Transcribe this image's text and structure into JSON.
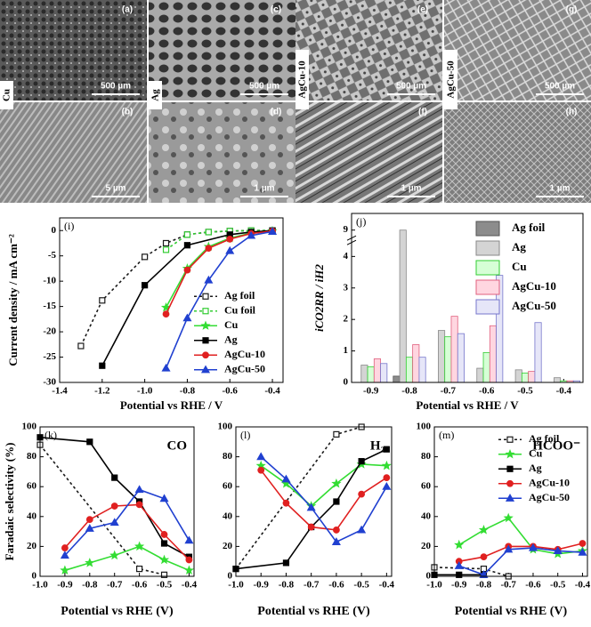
{
  "micrographs": {
    "panels": [
      {
        "label": "(a)",
        "scale_bar": "500 µm"
      },
      {
        "label": "(b)",
        "scale_bar": "5 µm"
      },
      {
        "label": "(c)",
        "scale_bar": "500 µm"
      },
      {
        "label": "(d)",
        "scale_bar": "1 µm"
      },
      {
        "label": "(e)",
        "scale_bar": "500 µm"
      },
      {
        "label": "(f)",
        "scale_bar": "1 µm"
      },
      {
        "label": "(g)",
        "scale_bar": "500 µm"
      },
      {
        "label": "(h)",
        "scale_bar": "1 µm"
      }
    ],
    "samples": [
      "Cu",
      "Ag",
      "AgCu-10",
      "AgCu-50"
    ]
  },
  "chart_data": [
    {
      "type": "line",
      "panel_label": "(i)",
      "x_label": "Potential vs RHE / V",
      "y_label": "Current density / mA cm⁻²",
      "xlim": [
        -1.4,
        -0.35
      ],
      "xticks": [
        -1.4,
        -1.2,
        {
          "value": -1,
          "label": "-1.0"
        },
        -0.8,
        -0.6,
        -0.4
      ],
      "ylim": [
        -30,
        2.5
      ],
      "yticks": [
        0,
        -5,
        -10,
        -15,
        -20,
        -25,
        -30
      ],
      "legend": "lower right",
      "series": [
        {
          "name": "Ag foil",
          "color": "#1a1a1a",
          "marker": "square",
          "open": true,
          "dash": true,
          "x": [
            -1.3,
            -1.2,
            -1,
            -0.9,
            -0.8,
            -0.7,
            -0.6,
            -0.5,
            -0.4
          ],
          "values": [
            -22.8,
            -13.8,
            -5.2,
            -2.5,
            -0.8,
            -0.3,
            -0.1,
            0,
            0
          ]
        },
        {
          "name": "Cu foil",
          "color": "#33cc33",
          "marker": "square",
          "open": true,
          "dash": true,
          "x": [
            -0.9,
            -0.8,
            -0.7,
            -0.6,
            -0.5,
            -0.4
          ],
          "values": [
            -3.8,
            -0.8,
            -0.3,
            -0.1,
            0,
            0
          ]
        },
        {
          "name": "Cu",
          "color": "#33dd33",
          "marker": "star",
          "x": [
            -0.9,
            -0.8,
            -0.7,
            -0.6,
            -0.5,
            -0.4
          ],
          "values": [
            -15.2,
            -7.5,
            -3.2,
            -1.5,
            -0.5,
            -0.1
          ]
        },
        {
          "name": "Ag",
          "color": "#000000",
          "marker": "square",
          "x": [
            -1.2,
            -1,
            -0.8,
            -0.6,
            -0.5,
            -0.4
          ],
          "values": [
            -26.7,
            -10.8,
            -2.9,
            -0.8,
            -0.3,
            0
          ]
        },
        {
          "name": "AgCu-10",
          "color": "#e02020",
          "marker": "circle",
          "x": [
            -0.9,
            -0.8,
            -0.7,
            -0.6,
            -0.5,
            -0.4
          ],
          "values": [
            -16.5,
            -7.8,
            -3.5,
            -1.7,
            -0.6,
            -0.1
          ]
        },
        {
          "name": "AgCu-50",
          "color": "#2040d0",
          "marker": "triangle",
          "x": [
            -0.9,
            -0.8,
            -0.7,
            -0.6,
            -0.5,
            -0.4
          ],
          "values": [
            -27.2,
            -17.3,
            -9.8,
            -4,
            -1,
            -0.2
          ]
        }
      ]
    },
    {
      "type": "bar",
      "panel_label": "(j)",
      "x_label": "Potential vs RHE / V",
      "y_label": "iCO2RR / iH2",
      "categories": [
        "-0.9",
        "-0.8",
        "-0.7",
        "-0.6",
        "-0.5",
        "-0.4"
      ],
      "ylim": [
        0,
        9.5
      ],
      "axis_break": [
        4.4,
        8.8
      ],
      "yticks": [
        0,
        1,
        2,
        3,
        4,
        9
      ],
      "legend": "upper right",
      "series": [
        {
          "name": "Ag foil",
          "color": "#8c8c8c",
          "edgecolor": "#555555",
          "values": [
            0,
            0.2,
            0,
            0,
            0,
            0
          ]
        },
        {
          "name": "Ag",
          "color": "#d4d4d4",
          "edgecolor": "#888888",
          "values": [
            0.55,
            9,
            1.65,
            0.45,
            0.4,
            0.15
          ]
        },
        {
          "name": "Cu",
          "color": "#d6ffd6",
          "edgecolor": "#33cc33",
          "values": [
            0.5,
            0.8,
            1.45,
            0.95,
            0.3,
            0.05
          ]
        },
        {
          "name": "AgCu-10",
          "color": "#ffd6e0",
          "edgecolor": "#e0607e",
          "values": [
            0.75,
            1.2,
            2.1,
            1.8,
            0.35,
            0.05
          ]
        },
        {
          "name": "AgCu-50",
          "color": "#e6e6f8",
          "edgecolor": "#7777cc",
          "values": [
            0.6,
            0.8,
            1.55,
            3.4,
            1.9,
            0.05
          ]
        }
      ]
    },
    {
      "type": "line",
      "panel_label": "(k)",
      "title": "CO",
      "x_label": "Potential vs RHE (V)",
      "y_label": "Faradaic selectivity (%)",
      "xlim": [
        -1,
        -0.38
      ],
      "xticks": [
        {
          "value": -1,
          "label": "-1.0"
        },
        -0.9,
        -0.8,
        -0.7,
        -0.6,
        -0.5,
        -0.4
      ],
      "ylim": [
        0,
        100
      ],
      "yticks": [
        0,
        20,
        40,
        60,
        80,
        100
      ],
      "series": [
        {
          "name": "Ag foil",
          "color": "#1a1a1a",
          "marker": "square",
          "open": true,
          "dash": true,
          "x": [
            -1,
            -0.6,
            -0.5
          ],
          "values": [
            88,
            5,
            1
          ]
        },
        {
          "name": "Cu",
          "color": "#33dd33",
          "marker": "star",
          "x": [
            -0.9,
            -0.8,
            -0.7,
            -0.6,
            -0.5,
            -0.4
          ],
          "values": [
            4,
            9,
            14,
            20,
            11,
            4
          ]
        },
        {
          "name": "Ag",
          "color": "#000000",
          "marker": "square",
          "x": [
            -1,
            -0.8,
            -0.7,
            -0.6,
            -0.5,
            -0.4
          ],
          "values": [
            93,
            90,
            66,
            50,
            22,
            13
          ]
        },
        {
          "name": "AgCu-10",
          "color": "#e02020",
          "marker": "circle",
          "x": [
            -0.9,
            -0.8,
            -0.7,
            -0.6,
            -0.5,
            -0.4
          ],
          "values": [
            19,
            38,
            47,
            48,
            28,
            11
          ]
        },
        {
          "name": "AgCu-50",
          "color": "#2040d0",
          "marker": "triangle",
          "x": [
            -0.9,
            -0.8,
            -0.7,
            -0.6,
            -0.5,
            -0.4
          ],
          "values": [
            14,
            32,
            36,
            58,
            52,
            24
          ]
        }
      ]
    },
    {
      "type": "line",
      "panel_label": "(l)",
      "title": "H₂",
      "x_label": "Potential vs RHE (V)",
      "xlim": [
        -1,
        -0.38
      ],
      "xticks": [
        {
          "value": -1,
          "label": "-1.0"
        },
        -0.9,
        -0.8,
        -0.7,
        -0.6,
        -0.5,
        -0.4
      ],
      "ylim": [
        0,
        100
      ],
      "yticks": [
        0,
        20,
        40,
        60,
        80,
        100
      ],
      "series": [
        {
          "name": "Ag foil",
          "color": "#1a1a1a",
          "marker": "square",
          "open": true,
          "dash": true,
          "x": [
            -1,
            -0.6,
            -0.5
          ],
          "values": [
            5,
            95,
            100
          ]
        },
        {
          "name": "Cu",
          "color": "#33dd33",
          "marker": "star",
          "x": [
            -0.9,
            -0.8,
            -0.7,
            -0.6,
            -0.5,
            -0.4
          ],
          "values": [
            74,
            62,
            47,
            62,
            75,
            74
          ]
        },
        {
          "name": "Ag",
          "color": "#000000",
          "marker": "square",
          "x": [
            -1,
            -0.8,
            -0.7,
            -0.6,
            -0.5,
            -0.4
          ],
          "values": [
            5,
            9,
            33,
            50,
            77,
            85
          ]
        },
        {
          "name": "AgCu-10",
          "color": "#e02020",
          "marker": "circle",
          "x": [
            -0.9,
            -0.8,
            -0.7,
            -0.6,
            -0.5,
            -0.4
          ],
          "values": [
            71,
            49,
            33,
            31,
            55,
            66
          ]
        },
        {
          "name": "AgCu-50",
          "color": "#2040d0",
          "marker": "triangle",
          "x": [
            -0.9,
            -0.8,
            -0.7,
            -0.6,
            -0.5,
            -0.4
          ],
          "values": [
            80,
            65,
            46,
            23,
            31,
            60
          ]
        }
      ]
    },
    {
      "type": "line",
      "panel_label": "(m)",
      "title": "HCOO⁻",
      "x_label": "Potential vs RHE (V)",
      "xlim": [
        -1,
        -0.38
      ],
      "xticks": [
        {
          "value": -1,
          "label": "-1.0"
        },
        -0.9,
        -0.8,
        -0.7,
        -0.6,
        -0.5,
        -0.4
      ],
      "ylim": [
        0,
        100
      ],
      "yticks": [
        0,
        20,
        40,
        60,
        80,
        100
      ],
      "legend": "upper right",
      "series": [
        {
          "name": "Ag foil",
          "color": "#1a1a1a",
          "marker": "square",
          "open": true,
          "dash": true,
          "x": [
            -1,
            -0.8,
            -0.7
          ],
          "values": [
            6,
            5,
            0
          ]
        },
        {
          "name": "Cu",
          "color": "#33dd33",
          "marker": "star",
          "x": [
            -0.9,
            -0.8,
            -0.7,
            -0.6,
            -0.5,
            -0.4
          ],
          "values": [
            21,
            31,
            39,
            18,
            15,
            17
          ]
        },
        {
          "name": "Ag",
          "color": "#000000",
          "marker": "square",
          "x": [
            -1,
            -0.9,
            -0.8
          ],
          "values": [
            1,
            1,
            1
          ]
        },
        {
          "name": "AgCu-10",
          "color": "#e02020",
          "marker": "circle",
          "x": [
            -0.9,
            -0.8,
            -0.7,
            -0.6,
            -0.5,
            -0.4
          ],
          "values": [
            10,
            13,
            20,
            20,
            18,
            22
          ]
        },
        {
          "name": "AgCu-50",
          "color": "#2040d0",
          "marker": "triangle",
          "x": [
            -0.9,
            -0.8,
            -0.7,
            -0.6,
            -0.5,
            -0.4
          ],
          "values": [
            7,
            1,
            18,
            19,
            17,
            16
          ]
        }
      ]
    }
  ]
}
